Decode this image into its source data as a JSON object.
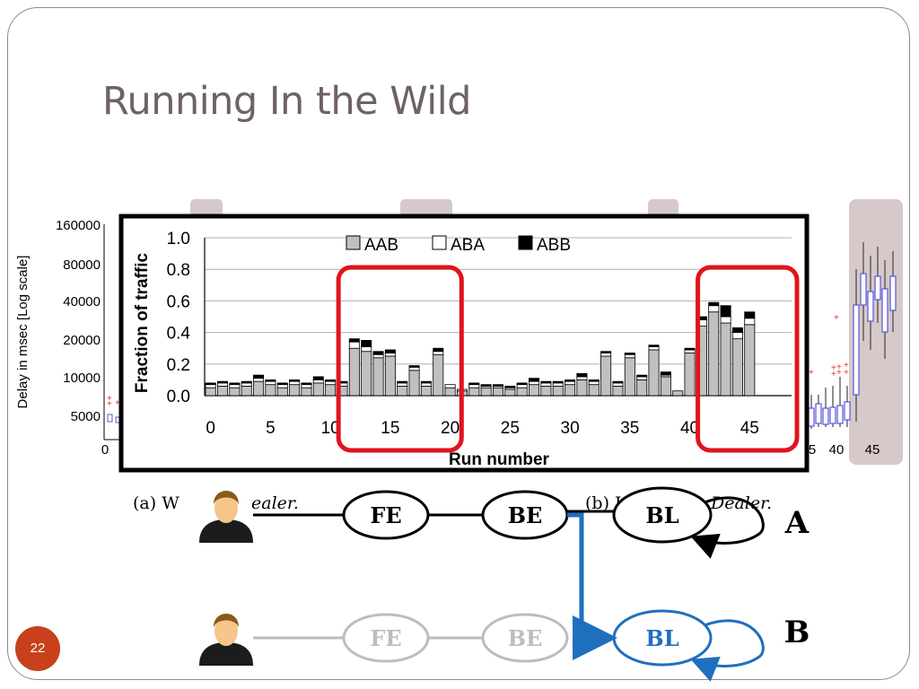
{
  "slide": {
    "title": "Running In the Wild",
    "number": "22"
  },
  "background_figure": {
    "ylabel": "Delay in msec [Log scale]",
    "y_ticks": [
      "160000",
      "80000",
      "40000",
      "20000",
      "10000",
      "5000"
    ],
    "left_x_tick": "0",
    "right_x_ticks": [
      "5",
      "40",
      "45"
    ],
    "caption_a_prefix": "(a)  W",
    "caption_a_suffix": "ealer.",
    "caption_b_prefix": "(b)  I",
    "caption_b_suffix": "Dealer."
  },
  "chart_data": {
    "type": "bar",
    "stacked": true,
    "xlabel": "Run number",
    "ylabel": "Fraction of traffic",
    "ylim": [
      0,
      1.0
    ],
    "y_ticks": [
      "0.0",
      "0.2",
      "0.4",
      "0.6",
      "0.8",
      "1.0"
    ],
    "x_ticks": [
      "0",
      "5",
      "10",
      "15",
      "20",
      "25",
      "30",
      "35",
      "40",
      "45"
    ],
    "legend_position": "top-center",
    "highlighted_ranges": [
      [
        12,
        20
      ],
      [
        42,
        48
      ]
    ],
    "x": [
      0,
      1,
      2,
      3,
      4,
      5,
      6,
      7,
      8,
      9,
      10,
      11,
      12,
      13,
      14,
      15,
      16,
      17,
      18,
      19,
      20,
      21,
      22,
      23,
      24,
      25,
      26,
      27,
      28,
      29,
      30,
      31,
      32,
      33,
      34,
      35,
      36,
      37,
      38,
      39,
      40,
      41,
      42,
      43,
      44,
      45,
      46,
      47,
      48
    ],
    "series": [
      {
        "name": "AAB",
        "color": "#c0c0c0",
        "values": [
          0.05,
          0.06,
          0.05,
          0.06,
          0.09,
          0.07,
          0.05,
          0.07,
          0.05,
          0.08,
          0.07,
          0.06,
          0.3,
          0.28,
          0.24,
          0.25,
          0.06,
          0.16,
          0.06,
          0.26,
          0.05,
          0.03,
          0.05,
          0.05,
          0.05,
          0.04,
          0.05,
          0.07,
          0.06,
          0.06,
          0.07,
          0.1,
          0.07,
          0.25,
          0.06,
          0.24,
          0.1,
          0.29,
          0.12,
          0.03,
          0.27,
          0.44,
          0.53,
          0.46,
          0.36,
          0.45,
          0.0,
          0.0,
          0.0
        ]
      },
      {
        "name": "ABA",
        "color": "#ffffff",
        "values": [
          0.02,
          0.02,
          0.02,
          0.02,
          0.02,
          0.02,
          0.02,
          0.02,
          0.02,
          0.02,
          0.02,
          0.02,
          0.04,
          0.03,
          0.02,
          0.02,
          0.02,
          0.02,
          0.02,
          0.02,
          0.02,
          0.01,
          0.02,
          0.01,
          0.01,
          0.01,
          0.02,
          0.02,
          0.02,
          0.02,
          0.02,
          0.02,
          0.02,
          0.02,
          0.02,
          0.02,
          0.02,
          0.02,
          0.01,
          0.0,
          0.02,
          0.04,
          0.04,
          0.04,
          0.04,
          0.04,
          0.0,
          0.0,
          0.0
        ]
      },
      {
        "name": "ABB",
        "color": "#000000",
        "values": [
          0.01,
          0.01,
          0.01,
          0.01,
          0.02,
          0.01,
          0.01,
          0.01,
          0.01,
          0.02,
          0.01,
          0.01,
          0.02,
          0.04,
          0.02,
          0.02,
          0.01,
          0.01,
          0.01,
          0.02,
          0.0,
          0.0,
          0.01,
          0.01,
          0.01,
          0.01,
          0.01,
          0.02,
          0.01,
          0.01,
          0.01,
          0.02,
          0.01,
          0.01,
          0.01,
          0.01,
          0.01,
          0.01,
          0.02,
          0.0,
          0.01,
          0.02,
          0.02,
          0.07,
          0.03,
          0.04,
          0.0,
          0.0,
          0.0
        ]
      }
    ]
  },
  "flow_diagram": {
    "row_a": {
      "label": "A",
      "nodes": [
        "FE",
        "BE",
        "BL"
      ]
    },
    "row_b": {
      "label": "B",
      "nodes": [
        "FE",
        "BE",
        "BL"
      ]
    },
    "colors": {
      "active": "#000000",
      "inactive": "#bdbdbd",
      "highlight": "#1f6fbf"
    }
  }
}
